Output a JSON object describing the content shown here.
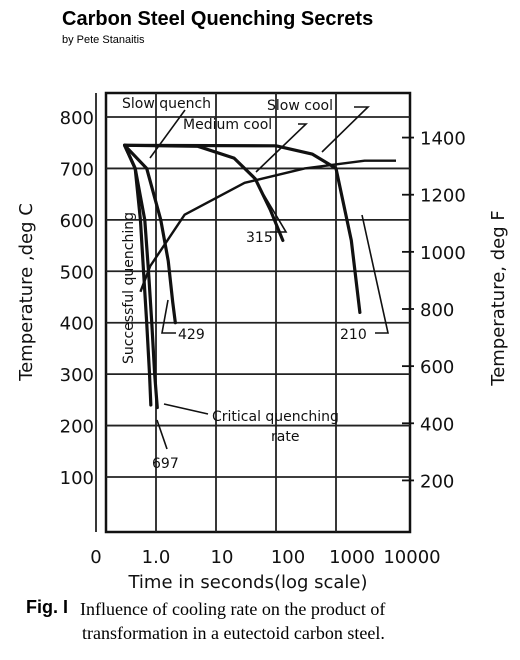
{
  "header": {
    "title": "Carbon Steel Quenching Secrets",
    "byline": "by Pete Stanaitis"
  },
  "chart_data": {
    "type": "line",
    "xlabel": "Time in seconds(log scale)",
    "ylabel_left": "Temperature ,deg C",
    "ylabel_right": "Temperature, deg F",
    "x_ticks": [
      "0",
      "1.0",
      "10",
      "100",
      "1000",
      "10000"
    ],
    "y_ticks_left": [
      "100",
      "200",
      "300",
      "400",
      "500",
      "600",
      "700",
      "800"
    ],
    "y_ticks_right": [
      "200",
      "400",
      "600",
      "800",
      "1000",
      "1200",
      "1400"
    ],
    "ylim_c": [
      0,
      860
    ],
    "grid": true,
    "transformation_boundary": {
      "name": "",
      "points": [
        [
          0.55,
          460
        ],
        [
          0.8,
          510
        ],
        [
          3,
          610
        ],
        [
          30,
          672
        ],
        [
          300,
          700
        ],
        [
          3000,
          715
        ],
        [
          10000,
          715
        ]
      ]
    },
    "series": [
      {
        "name": "",
        "points": [
          [
            0.3,
            745
          ],
          [
            0.45,
            700
          ],
          [
            0.55,
            600
          ],
          [
            0.62,
            500
          ],
          [
            0.7,
            400
          ],
          [
            0.78,
            300
          ],
          [
            0.82,
            240
          ]
        ]
      },
      {
        "name": "",
        "points": [
          [
            0.3,
            745
          ],
          [
            0.45,
            700
          ],
          [
            0.65,
            600
          ],
          [
            0.75,
            500
          ],
          [
            0.85,
            400
          ],
          [
            0.95,
            300
          ],
          [
            1.05,
            235
          ]
        ]
      },
      {
        "name": "",
        "points": [
          [
            0.3,
            745
          ],
          [
            0.7,
            700
          ],
          [
            1.2,
            600
          ],
          [
            1.6,
            520
          ],
          [
            1.9,
            440
          ],
          [
            2.1,
            400
          ]
        ]
      },
      {
        "name": "",
        "points": [
          [
            0.3,
            745
          ],
          [
            5,
            743
          ],
          [
            20,
            720
          ],
          [
            45,
            680
          ],
          [
            80,
            620
          ],
          [
            130,
            560
          ]
        ]
      },
      {
        "name": "",
        "points": [
          [
            0.3,
            745
          ],
          [
            100,
            744
          ],
          [
            400,
            728
          ],
          [
            1000,
            700
          ],
          [
            1800,
            560
          ],
          [
            2500,
            420
          ]
        ]
      }
    ],
    "annotations": [
      {
        "text": "Slow quench"
      },
      {
        "text": "Medium cool"
      },
      {
        "text": "Slow cool"
      },
      {
        "text": "315"
      },
      {
        "text": "429"
      },
      {
        "text": "210"
      },
      {
        "text": "697"
      },
      {
        "text": "Successful quenching"
      },
      {
        "text": "Critical quenching"
      },
      {
        "text": "rate"
      }
    ]
  },
  "caption": {
    "label": "Fig. I",
    "line1": "Influence of cooling rate on the product of",
    "line2": "transformation in a eutectoid carbon steel."
  }
}
